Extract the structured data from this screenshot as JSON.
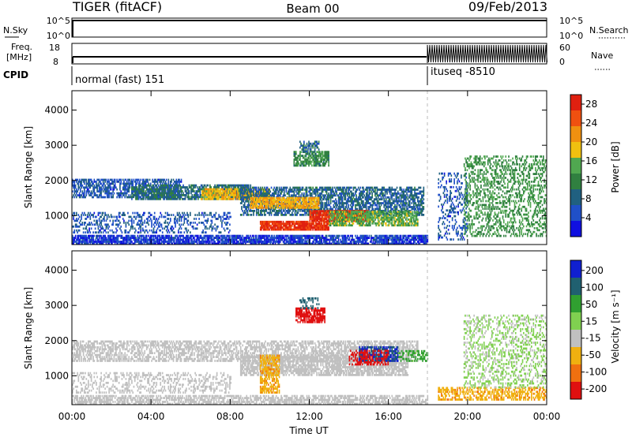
{
  "header": {
    "station": "TIGER (fitACF)",
    "beam": "Beam 00",
    "date": "09/Feb/2013"
  },
  "status_panels": {
    "nsky_label": "N.Sky",
    "nsky_ticks": [
      "10^5",
      "10^0"
    ],
    "nsearch_label": "N.Search",
    "nsearch_ticks": [
      "10^5",
      "10^0"
    ],
    "freq_label_line1": "Freq.",
    "freq_label_line2": "[MHz]",
    "freq_ticks": [
      "18",
      "8"
    ],
    "nave_label": "Nave",
    "nave_ticks": [
      "60",
      "0"
    ],
    "cpid_label": "CPID",
    "cpid_modes": [
      {
        "name": "normal (fast) 151",
        "start_hour": 0,
        "end_hour": 18
      },
      {
        "name": "ituseq -8510",
        "start_hour": 18,
        "end_hour": 24
      }
    ]
  },
  "chart_data": [
    {
      "type": "heatmap",
      "quantity": "Power",
      "ylabel": "Slant Range [km]",
      "colorbar_label": "Power [dB]",
      "colorbar_ticks": [
        4,
        8,
        12,
        16,
        20,
        24,
        28
      ],
      "colorbar_range": [
        0,
        30
      ],
      "colorscale": [
        "#1010e0",
        "#2050c8",
        "#206080",
        "#308040",
        "#50a850",
        "#f0c010",
        "#f09010",
        "#f05010",
        "#e02010"
      ],
      "y_ticks": [
        1000,
        2000,
        3000,
        4000
      ],
      "ylim": [
        180,
        4550
      ],
      "xlim_hours": [
        0,
        24
      ],
      "regions": [
        {
          "t0": 0.0,
          "t1": 18.0,
          "r0": 180,
          "r1": 430,
          "value": 4,
          "density": 0.8
        },
        {
          "t0": 0.0,
          "t1": 5.5,
          "r0": 1500,
          "r1": 2000,
          "value": 6,
          "density": 0.6
        },
        {
          "t0": 3.0,
          "t1": 9.0,
          "r0": 1450,
          "r1": 1850,
          "value": 9,
          "density": 0.7
        },
        {
          "t0": 6.5,
          "t1": 10.0,
          "r0": 1450,
          "r1": 1750,
          "value": 19,
          "density": 0.75
        },
        {
          "t0": 8.5,
          "t1": 17.8,
          "r0": 1000,
          "r1": 1800,
          "value": 8,
          "density": 0.65
        },
        {
          "t0": 9.0,
          "t1": 12.5,
          "r0": 1200,
          "r1": 1500,
          "value": 20,
          "density": 0.8
        },
        {
          "t0": 9.5,
          "t1": 13.0,
          "r0": 580,
          "r1": 830,
          "value": 27,
          "density": 0.9
        },
        {
          "t0": 12.0,
          "t1": 15.0,
          "r0": 830,
          "r1": 1120,
          "value": 28,
          "density": 0.9
        },
        {
          "t0": 13.0,
          "t1": 17.5,
          "r0": 700,
          "r1": 1100,
          "value": 15,
          "density": 0.7
        },
        {
          "t0": 11.2,
          "t1": 13.0,
          "r0": 2400,
          "r1": 2800,
          "value": 12,
          "density": 0.7
        },
        {
          "t0": 11.5,
          "t1": 12.5,
          "r0": 2800,
          "r1": 3100,
          "value": 8,
          "density": 0.5
        },
        {
          "t0": 0.0,
          "t1": 8.0,
          "r0": 500,
          "r1": 1100,
          "value": 6,
          "density": 0.3
        },
        {
          "t0": 18.5,
          "t1": 20.0,
          "r0": 300,
          "r1": 2200,
          "value": 6,
          "density": 0.25
        },
        {
          "t0": 19.8,
          "t1": 24.0,
          "r0": 400,
          "r1": 2700,
          "value": 13,
          "density": 0.35
        }
      ]
    },
    {
      "type": "heatmap",
      "quantity": "Velocity",
      "ylabel": "Slant Range [km]",
      "colorbar_label": "Velocity [m s⁻¹]",
      "colorbar_ticks": [
        200,
        100,
        50,
        15,
        -15,
        -50,
        -100,
        -200
      ],
      "colorscale": [
        "#1020d0",
        "#206070",
        "#30a030",
        "#80d050",
        "#c0c0c0",
        "#f0b010",
        "#f07010",
        "#e01010"
      ],
      "y_ticks": [
        1000,
        2000,
        3000,
        4000
      ],
      "ylim": [
        180,
        4550
      ],
      "xlim_hours": [
        0,
        24
      ],
      "regions": [
        {
          "t0": 0.0,
          "t1": 18.0,
          "r0": 180,
          "r1": 430,
          "value": 0,
          "density": 0.6
        },
        {
          "t0": 0.0,
          "t1": 17.5,
          "r0": 1400,
          "r1": 2000,
          "value": 0,
          "density": 0.55
        },
        {
          "t0": 8.5,
          "t1": 17.0,
          "r0": 1000,
          "r1": 1600,
          "value": 0,
          "density": 0.7
        },
        {
          "t0": 9.5,
          "t1": 10.5,
          "r0": 500,
          "r1": 1600,
          "value": -40,
          "density": 0.6
        },
        {
          "t0": 14.5,
          "t1": 16.5,
          "r0": 1400,
          "r1": 1800,
          "value": 200,
          "density": 0.7
        },
        {
          "t0": 14.0,
          "t1": 16.0,
          "r0": 1300,
          "r1": 1700,
          "value": -120,
          "density": 0.4
        },
        {
          "t0": 11.3,
          "t1": 12.8,
          "r0": 2500,
          "r1": 2900,
          "value": -200,
          "density": 0.7
        },
        {
          "t0": 11.5,
          "t1": 12.5,
          "r0": 2900,
          "r1": 3200,
          "value": 150,
          "density": 0.4
        },
        {
          "t0": 16.5,
          "t1": 18.0,
          "r0": 1400,
          "r1": 1700,
          "value": 60,
          "density": 0.5
        },
        {
          "t0": 0.0,
          "t1": 8.0,
          "r0": 500,
          "r1": 1100,
          "value": 0,
          "density": 0.3
        },
        {
          "t0": 18.5,
          "t1": 24.0,
          "r0": 300,
          "r1": 650,
          "value": -40,
          "density": 0.5
        },
        {
          "t0": 19.8,
          "t1": 24.0,
          "r0": 650,
          "r1": 2700,
          "value": 20,
          "density": 0.3
        }
      ]
    }
  ],
  "x_axis": {
    "label": "Time UT",
    "ticks": [
      "00:00",
      "04:00",
      "08:00",
      "12:00",
      "16:00",
      "20:00",
      "00:00"
    ],
    "tick_hours": [
      0,
      4,
      8,
      12,
      16,
      20,
      24
    ]
  }
}
